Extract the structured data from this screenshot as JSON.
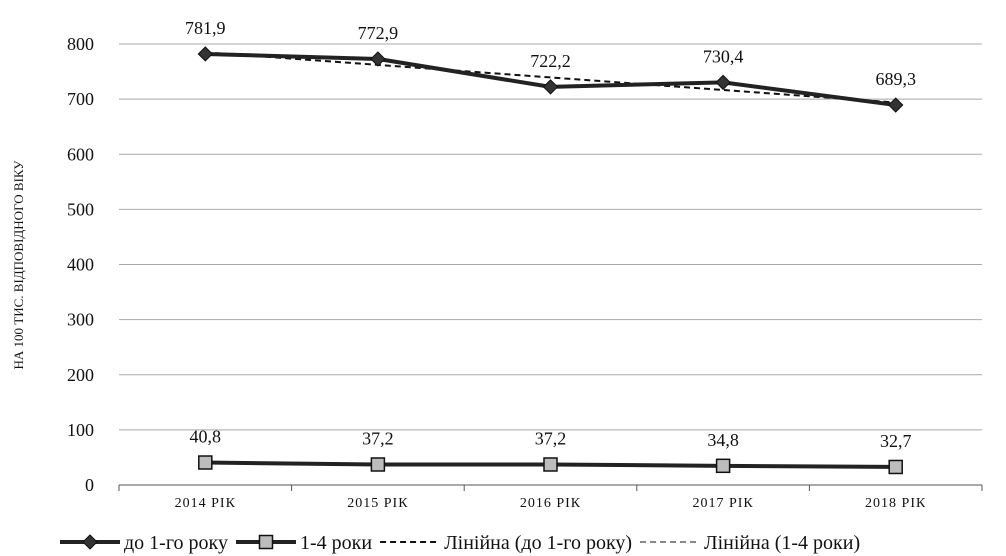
{
  "chart_data": {
    "type": "line",
    "title": "",
    "xlabel": "",
    "ylabel": "НА 100 ТИС. ВІДПОВІДНОГО ВІКУ",
    "categories": [
      "2014 РІК",
      "2015 РІК",
      "2016 РІК",
      "2017 РІК",
      "2018 РІК"
    ],
    "ylim": [
      0,
      800
    ],
    "yticks": [
      0,
      100,
      200,
      300,
      400,
      500,
      600,
      700,
      800
    ],
    "grid": true,
    "legend_position": "bottom",
    "series": [
      {
        "name": "до 1-го року",
        "values": [
          781.9,
          772.9,
          722.2,
          730.4,
          689.3
        ],
        "labels": [
          "781,9",
          "772,9",
          "722,2",
          "730,4",
          "689,3"
        ],
        "marker": "diamond",
        "color": "#222222"
      },
      {
        "name": "1-4 роки",
        "values": [
          40.8,
          37.2,
          37.2,
          34.8,
          32.7
        ],
        "labels": [
          "40,8",
          "37,2",
          "37,2",
          "34,8",
          "32,7"
        ],
        "marker": "square",
        "color": "#222222"
      }
    ],
    "trendlines": [
      {
        "name": "Лінійна (до 1-го року)",
        "series_index": 0,
        "color": "#111111"
      },
      {
        "name": "Лінійна (1-4 роки)",
        "series_index": 1,
        "color": "#888888"
      }
    ]
  }
}
